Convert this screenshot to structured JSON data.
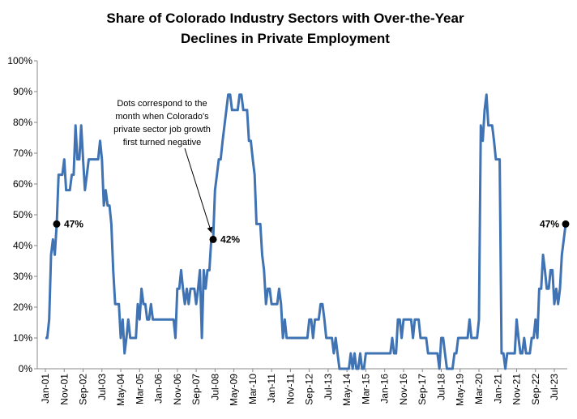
{
  "chart_data": {
    "type": "line",
    "title_lines": [
      "Share of Colorado Industry Sectors with Over-the-Year",
      "Declines in Private Employment"
    ],
    "xlabel": "",
    "ylabel": "",
    "ylim": [
      0,
      100
    ],
    "y_ticks": [
      "0%",
      "10%",
      "20%",
      "30%",
      "40%",
      "50%",
      "60%",
      "70%",
      "80%",
      "90%",
      "100%"
    ],
    "x_tick_labels": [
      "Jan-01",
      "Nov-01",
      "Sep-02",
      "Jul-03",
      "May-04",
      "Mar-05",
      "Jan-06",
      "Nov-06",
      "Sep-07",
      "Jul-08",
      "May-09",
      "Mar-10",
      "Jan-11",
      "Nov-11",
      "Sep-12",
      "Jul-13",
      "May-14",
      "Mar-15",
      "Jan-16",
      "Nov-16",
      "Sep-17",
      "Jul-18",
      "May-19",
      "Mar-20",
      "Jan-21",
      "Nov-21",
      "Sep-22",
      "Jul-23"
    ],
    "grid": false,
    "legend": "none",
    "line_color": "#3f73b3",
    "points": [
      [
        "2001-01",
        10
      ],
      [
        "2001-02",
        10
      ],
      [
        "2001-03",
        16
      ],
      [
        "2001-04",
        37
      ],
      [
        "2001-05",
        42
      ],
      [
        "2001-06",
        37
      ],
      [
        "2001-07",
        47
      ],
      [
        "2001-08",
        63
      ],
      [
        "2001-09",
        63
      ],
      [
        "2001-10",
        63
      ],
      [
        "2001-11",
        68
      ],
      [
        "2001-12",
        58
      ],
      [
        "2002-01",
        58
      ],
      [
        "2002-02",
        58
      ],
      [
        "2002-03",
        63
      ],
      [
        "2002-04",
        63
      ],
      [
        "2002-05",
        79
      ],
      [
        "2002-06",
        68
      ],
      [
        "2002-07",
        68
      ],
      [
        "2002-08",
        79
      ],
      [
        "2002-09",
        68
      ],
      [
        "2002-10",
        58
      ],
      [
        "2002-11",
        63
      ],
      [
        "2002-12",
        68
      ],
      [
        "2003-01",
        68
      ],
      [
        "2003-02",
        68
      ],
      [
        "2003-03",
        68
      ],
      [
        "2003-04",
        68
      ],
      [
        "2003-05",
        68
      ],
      [
        "2003-06",
        74
      ],
      [
        "2003-07",
        68
      ],
      [
        "2003-08",
        53
      ],
      [
        "2003-09",
        58
      ],
      [
        "2003-10",
        53
      ],
      [
        "2003-11",
        53
      ],
      [
        "2003-12",
        47
      ],
      [
        "2004-01",
        32
      ],
      [
        "2004-02",
        21
      ],
      [
        "2004-03",
        21
      ],
      [
        "2004-04",
        21
      ],
      [
        "2004-05",
        10
      ],
      [
        "2004-06",
        16
      ],
      [
        "2004-07",
        5
      ],
      [
        "2004-08",
        10
      ],
      [
        "2004-09",
        16
      ],
      [
        "2004-10",
        10
      ],
      [
        "2004-11",
        10
      ],
      [
        "2004-12",
        10
      ],
      [
        "2005-01",
        10
      ],
      [
        "2005-02",
        21
      ],
      [
        "2005-03",
        16
      ],
      [
        "2005-04",
        26
      ],
      [
        "2005-05",
        21
      ],
      [
        "2005-06",
        21
      ],
      [
        "2005-07",
        16
      ],
      [
        "2005-08",
        16
      ],
      [
        "2005-09",
        21
      ],
      [
        "2005-10",
        16
      ],
      [
        "2005-11",
        16
      ],
      [
        "2005-12",
        16
      ],
      [
        "2006-01",
        16
      ],
      [
        "2006-02",
        16
      ],
      [
        "2006-03",
        16
      ],
      [
        "2006-04",
        16
      ],
      [
        "2006-05",
        16
      ],
      [
        "2006-06",
        16
      ],
      [
        "2006-07",
        16
      ],
      [
        "2006-08",
        16
      ],
      [
        "2006-09",
        16
      ],
      [
        "2006-10",
        10
      ],
      [
        "2006-11",
        26
      ],
      [
        "2006-12",
        26
      ],
      [
        "2007-01",
        32
      ],
      [
        "2007-02",
        26
      ],
      [
        "2007-03",
        21
      ],
      [
        "2007-04",
        26
      ],
      [
        "2007-05",
        21
      ],
      [
        "2007-06",
        26
      ],
      [
        "2007-07",
        26
      ],
      [
        "2007-08",
        26
      ],
      [
        "2007-09",
        21
      ],
      [
        "2007-10",
        26
      ],
      [
        "2007-11",
        32
      ],
      [
        "2007-12",
        10
      ],
      [
        "2008-01",
        32
      ],
      [
        "2008-02",
        26
      ],
      [
        "2008-03",
        32
      ],
      [
        "2008-04",
        32
      ],
      [
        "2008-05",
        42
      ],
      [
        "2008-06",
        42
      ],
      [
        "2008-07",
        58
      ],
      [
        "2008-08",
        63
      ],
      [
        "2008-09",
        68
      ],
      [
        "2008-10",
        68
      ],
      [
        "2008-11",
        74
      ],
      [
        "2008-12",
        79
      ],
      [
        "2009-01",
        84
      ],
      [
        "2009-02",
        89
      ],
      [
        "2009-03",
        89
      ],
      [
        "2009-04",
        84
      ],
      [
        "2009-05",
        84
      ],
      [
        "2009-06",
        84
      ],
      [
        "2009-07",
        84
      ],
      [
        "2009-08",
        89
      ],
      [
        "2009-09",
        89
      ],
      [
        "2009-10",
        84
      ],
      [
        "2009-11",
        84
      ],
      [
        "2009-12",
        84
      ],
      [
        "2010-01",
        74
      ],
      [
        "2010-02",
        74
      ],
      [
        "2010-03",
        68
      ],
      [
        "2010-04",
        63
      ],
      [
        "2010-05",
        47
      ],
      [
        "2010-06",
        47
      ],
      [
        "2010-07",
        47
      ],
      [
        "2010-08",
        37
      ],
      [
        "2010-09",
        32
      ],
      [
        "2010-10",
        21
      ],
      [
        "2010-11",
        26
      ],
      [
        "2010-12",
        26
      ],
      [
        "2011-01",
        21
      ],
      [
        "2011-02",
        21
      ],
      [
        "2011-03",
        21
      ],
      [
        "2011-04",
        21
      ],
      [
        "2011-05",
        26
      ],
      [
        "2011-06",
        21
      ],
      [
        "2011-07",
        10
      ],
      [
        "2011-08",
        16
      ],
      [
        "2011-09",
        10
      ],
      [
        "2011-10",
        10
      ],
      [
        "2011-11",
        10
      ],
      [
        "2011-12",
        10
      ],
      [
        "2012-01",
        10
      ],
      [
        "2012-02",
        10
      ],
      [
        "2012-03",
        10
      ],
      [
        "2012-04",
        10
      ],
      [
        "2012-05",
        10
      ],
      [
        "2012-06",
        10
      ],
      [
        "2012-07",
        10
      ],
      [
        "2012-08",
        10
      ],
      [
        "2012-09",
        16
      ],
      [
        "2012-10",
        16
      ],
      [
        "2012-11",
        10
      ],
      [
        "2012-12",
        16
      ],
      [
        "2013-01",
        16
      ],
      [
        "2013-02",
        16
      ],
      [
        "2013-03",
        21
      ],
      [
        "2013-04",
        21
      ],
      [
        "2013-05",
        16
      ],
      [
        "2013-06",
        10
      ],
      [
        "2013-07",
        10
      ],
      [
        "2013-08",
        10
      ],
      [
        "2013-09",
        10
      ],
      [
        "2013-10",
        5
      ],
      [
        "2013-11",
        10
      ],
      [
        "2013-12",
        5
      ],
      [
        "2014-01",
        0
      ],
      [
        "2014-02",
        0
      ],
      [
        "2014-03",
        0
      ],
      [
        "2014-04",
        0
      ],
      [
        "2014-05",
        0
      ],
      [
        "2014-06",
        0
      ],
      [
        "2014-07",
        5
      ],
      [
        "2014-08",
        0
      ],
      [
        "2014-09",
        5
      ],
      [
        "2014-10",
        0
      ],
      [
        "2014-11",
        0
      ],
      [
        "2014-12",
        5
      ],
      [
        "2015-01",
        0
      ],
      [
        "2015-02",
        0
      ],
      [
        "2015-03",
        5
      ],
      [
        "2015-04",
        5
      ],
      [
        "2015-05",
        5
      ],
      [
        "2015-06",
        5
      ],
      [
        "2015-07",
        5
      ],
      [
        "2015-08",
        5
      ],
      [
        "2015-09",
        5
      ],
      [
        "2015-10",
        5
      ],
      [
        "2015-11",
        5
      ],
      [
        "2015-12",
        5
      ],
      [
        "2016-01",
        5
      ],
      [
        "2016-02",
        5
      ],
      [
        "2016-03",
        5
      ],
      [
        "2016-04",
        5
      ],
      [
        "2016-05",
        10
      ],
      [
        "2016-06",
        5
      ],
      [
        "2016-07",
        5
      ],
      [
        "2016-08",
        16
      ],
      [
        "2016-09",
        16
      ],
      [
        "2016-10",
        10
      ],
      [
        "2016-11",
        16
      ],
      [
        "2016-12",
        16
      ],
      [
        "2017-01",
        16
      ],
      [
        "2017-02",
        16
      ],
      [
        "2017-03",
        16
      ],
      [
        "2017-04",
        10
      ],
      [
        "2017-05",
        16
      ],
      [
        "2017-06",
        16
      ],
      [
        "2017-07",
        16
      ],
      [
        "2017-08",
        10
      ],
      [
        "2017-09",
        10
      ],
      [
        "2017-10",
        10
      ],
      [
        "2017-11",
        10
      ],
      [
        "2017-12",
        5
      ],
      [
        "2018-01",
        5
      ],
      [
        "2018-02",
        5
      ],
      [
        "2018-03",
        5
      ],
      [
        "2018-04",
        5
      ],
      [
        "2018-05",
        5
      ],
      [
        "2018-06",
        0
      ],
      [
        "2018-07",
        10
      ],
      [
        "2018-08",
        10
      ],
      [
        "2018-09",
        5
      ],
      [
        "2018-10",
        0
      ],
      [
        "2018-11",
        0
      ],
      [
        "2018-12",
        0
      ],
      [
        "2019-01",
        0
      ],
      [
        "2019-02",
        5
      ],
      [
        "2019-03",
        5
      ],
      [
        "2019-04",
        10
      ],
      [
        "2019-05",
        10
      ],
      [
        "2019-06",
        10
      ],
      [
        "2019-07",
        10
      ],
      [
        "2019-08",
        10
      ],
      [
        "2019-09",
        10
      ],
      [
        "2019-10",
        16
      ],
      [
        "2019-11",
        10
      ],
      [
        "2019-12",
        10
      ],
      [
        "2020-01",
        10
      ],
      [
        "2020-02",
        10
      ],
      [
        "2020-03",
        16
      ],
      [
        "2020-04",
        79
      ],
      [
        "2020-05",
        74
      ],
      [
        "2020-06",
        84
      ],
      [
        "2020-07",
        89
      ],
      [
        "2020-08",
        79
      ],
      [
        "2020-09",
        79
      ],
      [
        "2020-10",
        79
      ],
      [
        "2020-11",
        74
      ],
      [
        "2020-12",
        68
      ],
      [
        "2021-01",
        68
      ],
      [
        "2021-02",
        68
      ],
      [
        "2021-03",
        5
      ],
      [
        "2021-04",
        5
      ],
      [
        "2021-05",
        0
      ],
      [
        "2021-06",
        5
      ],
      [
        "2021-07",
        5
      ],
      [
        "2021-08",
        5
      ],
      [
        "2021-09",
        5
      ],
      [
        "2021-10",
        5
      ],
      [
        "2021-11",
        16
      ],
      [
        "2021-12",
        10
      ],
      [
        "2022-01",
        5
      ],
      [
        "2022-02",
        5
      ],
      [
        "2022-03",
        10
      ],
      [
        "2022-04",
        5
      ],
      [
        "2022-05",
        5
      ],
      [
        "2022-06",
        5
      ],
      [
        "2022-07",
        10
      ],
      [
        "2022-08",
        10
      ],
      [
        "2022-09",
        16
      ],
      [
        "2022-10",
        10
      ],
      [
        "2022-11",
        26
      ],
      [
        "2022-12",
        26
      ],
      [
        "2023-01",
        37
      ],
      [
        "2023-02",
        32
      ],
      [
        "2023-03",
        26
      ],
      [
        "2023-04",
        26
      ],
      [
        "2023-05",
        32
      ],
      [
        "2023-06",
        32
      ],
      [
        "2023-07",
        21
      ],
      [
        "2023-08",
        26
      ],
      [
        "2023-09",
        21
      ],
      [
        "2023-10",
        26
      ],
      [
        "2023-11",
        37
      ],
      [
        "2023-12",
        42
      ],
      [
        "2024-01",
        47
      ]
    ],
    "markers": [
      {
        "x": "2001-07",
        "y": 47,
        "label": "47%",
        "side": "right"
      },
      {
        "x": "2008-06",
        "y": 42,
        "label": "42%",
        "side": "right"
      },
      {
        "x": "2024-01",
        "y": 47,
        "label": "47%",
        "side": "left"
      }
    ],
    "annotation": {
      "lines": [
        "Dots correspond  to the",
        "month  when Colorado's",
        "private  sector  job growth",
        "first turned  negative"
      ],
      "arrow_target": {
        "x": "2008-06",
        "y": 42
      }
    }
  }
}
